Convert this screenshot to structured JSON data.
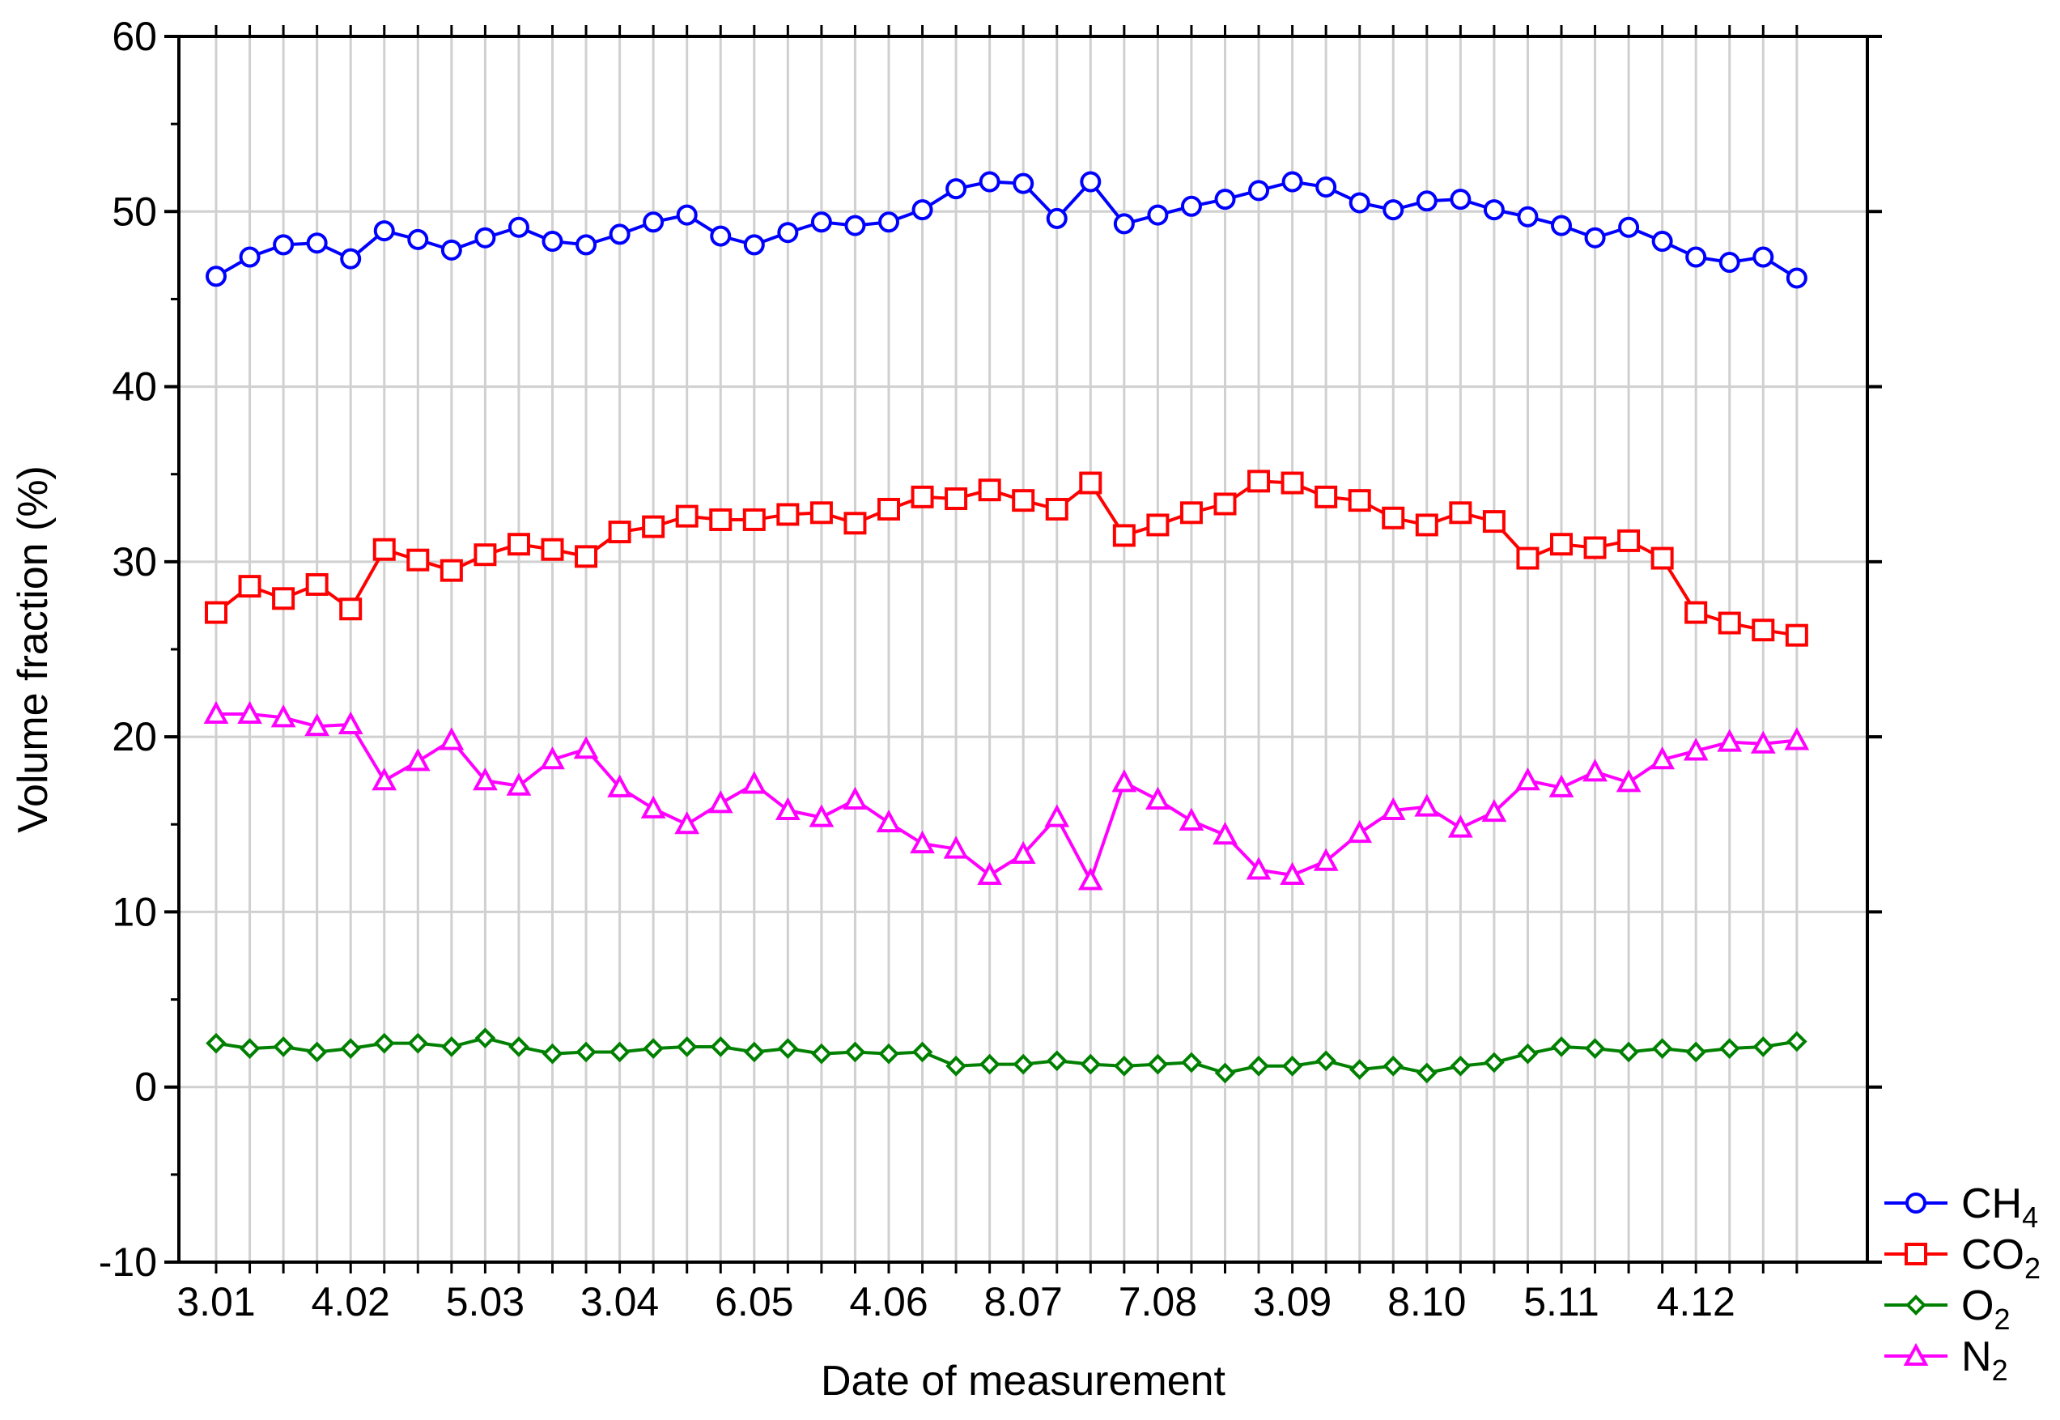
{
  "chart_data": {
    "type": "line",
    "xlabel": "Date of measurement",
    "ylabel": "Volume fraction (%)",
    "ylim": [
      -10,
      60
    ],
    "yticks": [
      -10,
      0,
      10,
      20,
      30,
      40,
      50,
      60
    ],
    "grid": true,
    "legend_position": "bottom-right",
    "x_tick_labels": [
      "3.01",
      "4.02",
      "5.03",
      "3.04",
      "6.05",
      "4.06",
      "8.07",
      "7.08",
      "3.09",
      "8.10",
      "5.11",
      "4.12"
    ],
    "series": [
      {
        "name": "CH4",
        "name_main": "CH",
        "name_sub": "4",
        "color": "#0000ff",
        "marker": "circle",
        "values": [
          46.3,
          47.4,
          48.1,
          48.2,
          47.3,
          48.9,
          48.4,
          47.8,
          48.5,
          49.1,
          48.3,
          48.1,
          48.7,
          49.4,
          49.8,
          48.6,
          48.1,
          48.8,
          49.4,
          49.2,
          49.4,
          50.1,
          51.3,
          51.7,
          51.6,
          49.6,
          51.7,
          49.3,
          49.8,
          50.3,
          50.7,
          51.2,
          51.7,
          51.4,
          50.5,
          50.1,
          50.6,
          50.7,
          50.1,
          49.7,
          49.2,
          48.5,
          49.1,
          48.3,
          47.4,
          47.1,
          47.4,
          46.2
        ]
      },
      {
        "name": "CO2",
        "name_main": "CO",
        "name_sub": "2",
        "color": "#ff0000",
        "marker": "square",
        "values": [
          27.1,
          28.6,
          27.9,
          28.7,
          27.3,
          30.7,
          30.1,
          29.5,
          30.4,
          31.0,
          30.7,
          30.3,
          31.7,
          32.0,
          32.6,
          32.4,
          32.4,
          32.7,
          32.8,
          32.2,
          33.0,
          33.7,
          33.6,
          34.1,
          33.5,
          33.0,
          34.5,
          31.5,
          32.1,
          32.8,
          33.3,
          34.6,
          34.5,
          33.7,
          33.5,
          32.5,
          32.1,
          32.8,
          32.3,
          30.2,
          31.0,
          30.8,
          31.2,
          30.2,
          27.1,
          26.5,
          26.1,
          25.8
        ]
      },
      {
        "name": "O2",
        "name_main": "O",
        "name_sub": "2",
        "color": "#008000",
        "marker": "diamond",
        "values": [
          2.5,
          2.2,
          2.3,
          2.0,
          2.2,
          2.5,
          2.5,
          2.3,
          2.8,
          2.3,
          1.9,
          2.0,
          2.0,
          2.2,
          2.3,
          2.3,
          2.0,
          2.2,
          1.9,
          2.0,
          1.9,
          2.0,
          1.2,
          1.3,
          1.3,
          1.5,
          1.3,
          1.2,
          1.3,
          1.4,
          0.8,
          1.2,
          1.2,
          1.5,
          1.0,
          1.2,
          0.8,
          1.2,
          1.4,
          1.9,
          2.3,
          2.2,
          2.0,
          2.2,
          2.0,
          2.2,
          2.3,
          2.6
        ]
      },
      {
        "name": "N2",
        "name_main": "N",
        "name_sub": "2",
        "color": "#ff00ff",
        "marker": "triangle",
        "values": [
          21.3,
          21.3,
          21.1,
          20.6,
          20.7,
          17.5,
          18.6,
          19.8,
          17.5,
          17.2,
          18.7,
          19.3,
          17.1,
          15.9,
          15.0,
          16.2,
          17.3,
          15.8,
          15.4,
          16.4,
          15.1,
          13.9,
          13.6,
          12.1,
          13.3,
          15.4,
          11.8,
          17.4,
          16.4,
          15.2,
          14.4,
          12.4,
          12.1,
          12.9,
          14.5,
          15.8,
          16.0,
          14.8,
          15.7,
          17.5,
          17.1,
          18.0,
          17.4,
          18.7,
          19.2,
          19.7,
          19.6,
          19.8
        ]
      }
    ]
  }
}
